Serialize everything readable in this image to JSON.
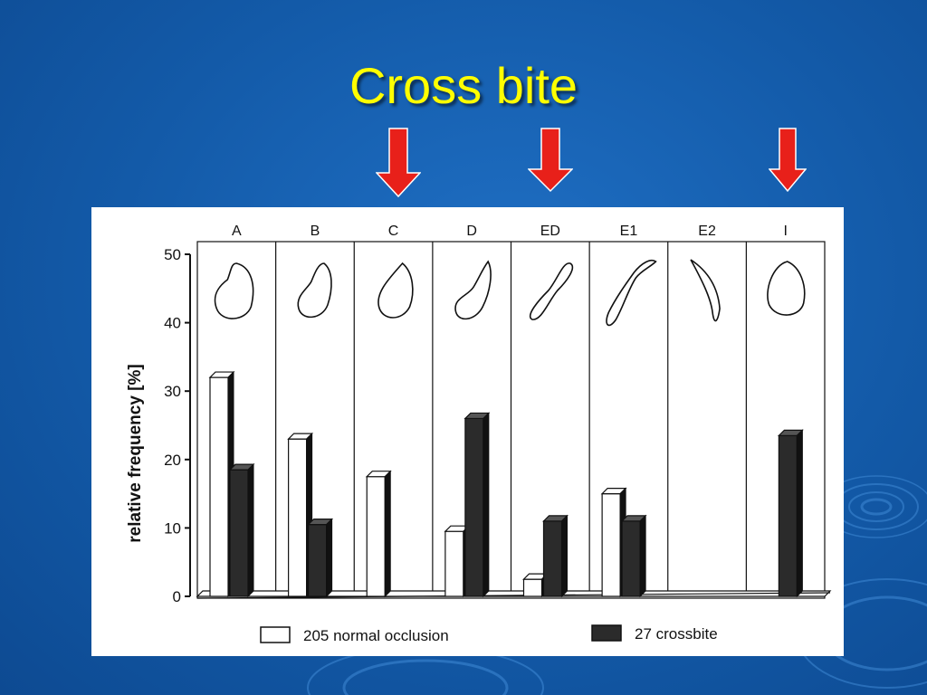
{
  "slide": {
    "title": "Cross bite",
    "title_color": "#ffff00",
    "arrow_color": "#e8201a"
  },
  "chart_data": {
    "type": "bar",
    "categories": [
      "A",
      "B",
      "C",
      "D",
      "ED",
      "E1",
      "E2",
      "I"
    ],
    "highlighted_categories": [
      "C",
      "ED",
      "I"
    ],
    "series": [
      {
        "name": "205 normal occlusion",
        "values": [
          32,
          23,
          17.5,
          9.5,
          2.5,
          15,
          0,
          0
        ],
        "color": "#ffffff"
      },
      {
        "name": "27 crossbite",
        "values": [
          18.5,
          10.5,
          0,
          26,
          11,
          11,
          0,
          23.5
        ],
        "color": "#2b2b2b"
      }
    ],
    "ylabel": "relative frequency [%]",
    "ylim": [
      0,
      50
    ],
    "yticks": [
      0,
      10,
      20,
      30,
      40,
      50
    ],
    "grid": false,
    "legend_position": "bottom",
    "bar_style": "3d"
  }
}
